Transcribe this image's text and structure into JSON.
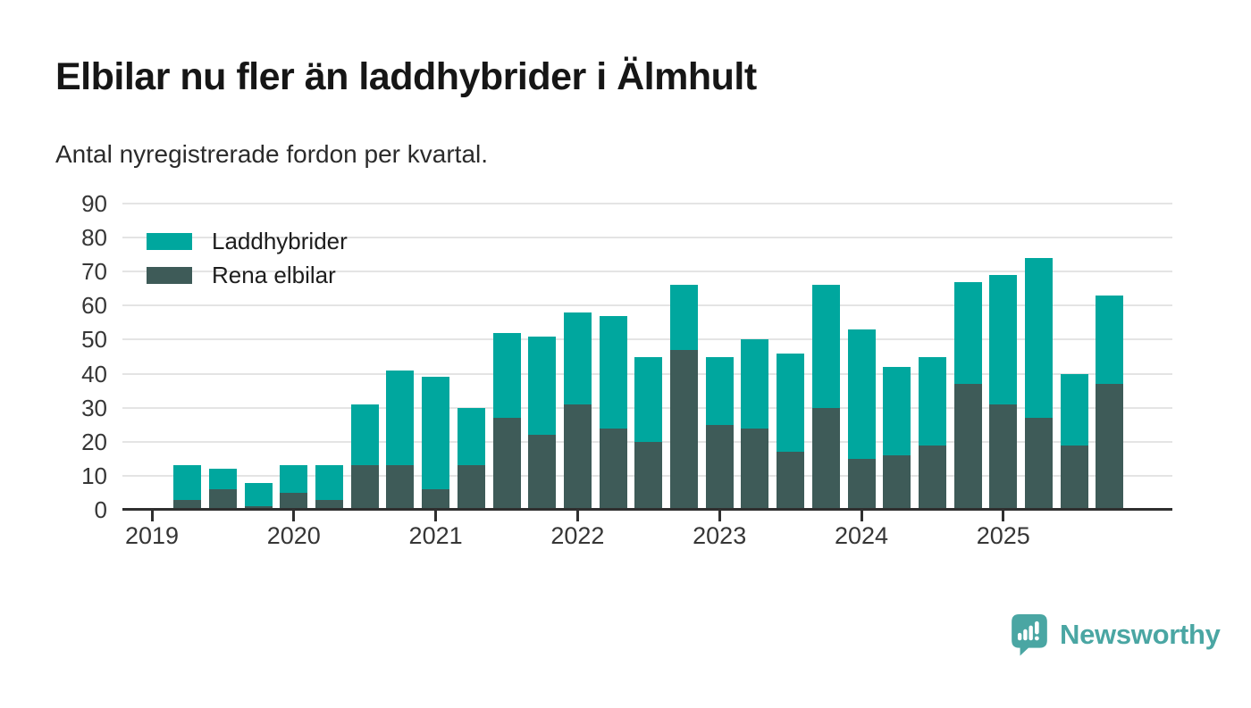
{
  "title": "Elbilar nu fler än laddhybrider i Älmhult",
  "subtitle": "Antal nyregistrerade fordon per kvartal.",
  "colors": {
    "laddhybrider": "#00a79e",
    "rena_elbilar": "#3e5b58",
    "grid": "#e4e4e4",
    "axis": "#2f2f2f",
    "tick_text": "#363636",
    "title_text": "#161616",
    "brand": "#4aa6a3"
  },
  "legend": {
    "items": [
      {
        "label": "Laddhybrider",
        "color_key": "laddhybrider"
      },
      {
        "label": "Rena elbilar",
        "color_key": "rena_elbilar"
      }
    ]
  },
  "branding": {
    "name": "Newsworthy",
    "logo_icon": "newsworthy-chart-bubble-icon"
  },
  "chart_data": {
    "type": "bar",
    "stacked": true,
    "title": "Elbilar nu fler än laddhybrider i Älmhult",
    "subtitle": "Antal nyregistrerade fordon per kvartal.",
    "xlabel": "",
    "ylabel": "",
    "ylim": [
      0,
      90
    ],
    "y_ticks": [
      0,
      10,
      20,
      30,
      40,
      50,
      60,
      70,
      80,
      90
    ],
    "grid": true,
    "legend_position": "top-left",
    "x": [
      "2019 Q1",
      "2019 Q2",
      "2019 Q3",
      "2019 Q4",
      "2020 Q1",
      "2020 Q2",
      "2020 Q3",
      "2020 Q4",
      "2021 Q1",
      "2021 Q2",
      "2021 Q3",
      "2021 Q4",
      "2022 Q1",
      "2022 Q2",
      "2022 Q3",
      "2022 Q4",
      "2023 Q1",
      "2023 Q2",
      "2023 Q3",
      "2023 Q4",
      "2024 Q1",
      "2024 Q2",
      "2024 Q3",
      "2024 Q4",
      "2025 Q1",
      "2025 Q2",
      "2025 Q3",
      "2025 Q4"
    ],
    "x_year_labels": [
      "2019",
      "2020",
      "2021",
      "2022",
      "2023",
      "2024",
      "2025"
    ],
    "x_year_tick_indices": [
      0,
      4,
      8,
      12,
      16,
      20,
      24
    ],
    "stack_order_bottom_to_top": [
      "Rena elbilar",
      "Laddhybrider"
    ],
    "series": [
      {
        "name": "Rena elbilar",
        "values": [
          0,
          3,
          6,
          1,
          5,
          3,
          13,
          13,
          6,
          13,
          27,
          22,
          31,
          24,
          20,
          47,
          25,
          24,
          17,
          30,
          15,
          16,
          19,
          37,
          31,
          27,
          19,
          37
        ]
      },
      {
        "name": "Laddhybrider",
        "values": [
          0,
          10,
          6,
          7,
          8,
          10,
          18,
          28,
          33,
          17,
          25,
          29,
          27,
          33,
          25,
          19,
          20,
          26,
          29,
          36,
          38,
          26,
          26,
          30,
          38,
          47,
          21,
          26
        ]
      }
    ],
    "totals": [
      0,
      13,
      12,
      8,
      13,
      13,
      31,
      41,
      39,
      30,
      52,
      51,
      58,
      57,
      45,
      66,
      45,
      50,
      46,
      66,
      53,
      42,
      45,
      67,
      69,
      74,
      40,
      63
    ]
  }
}
